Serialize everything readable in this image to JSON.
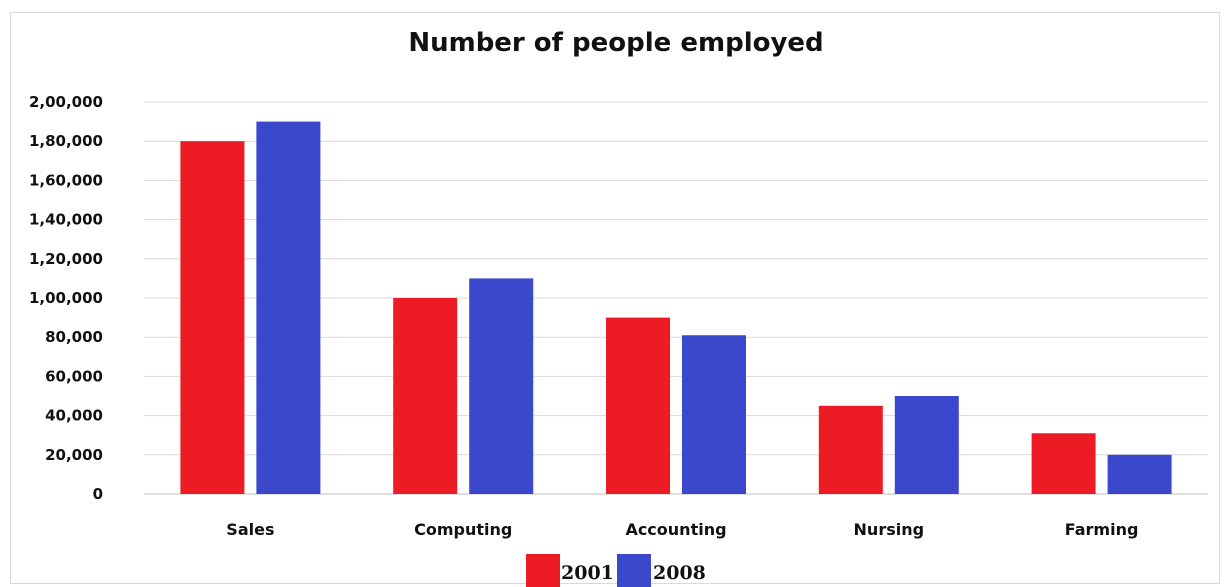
{
  "chart_data": {
    "type": "bar",
    "title": "Number of people employed",
    "categories": [
      "Sales",
      "Computing",
      "Accounting",
      "Nursing",
      "Farming"
    ],
    "series": [
      {
        "name": "2001",
        "color": "#ed1c24",
        "values": [
          180000,
          100000,
          90000,
          45000,
          31000
        ]
      },
      {
        "name": "2008",
        "color": "#3c48cc",
        "values": [
          190000,
          110000,
          81000,
          50000,
          20000
        ]
      }
    ],
    "ylim": [
      0,
      200000
    ],
    "yticks": [
      "0",
      "20,000",
      "40,000",
      "60,000",
      "80,000",
      "1,00,000",
      "1,20,000",
      "1,40,000",
      "1,60,000",
      "1,80,000",
      "2,00,000"
    ],
    "grid": true,
    "legend_position": "bottom"
  }
}
